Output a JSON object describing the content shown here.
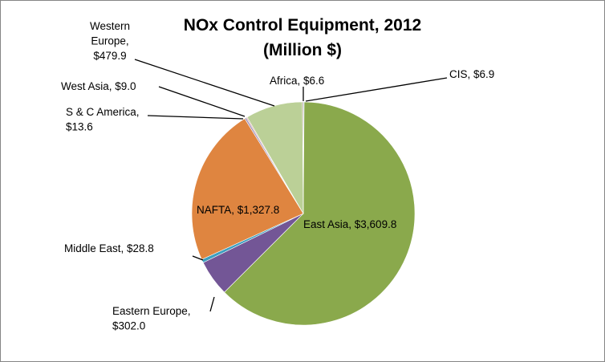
{
  "chart_data": {
    "type": "pie",
    "title": "NOx Control Equipment, 2012",
    "subtitle": "(Million $)",
    "unit": "Million $",
    "start": "top",
    "direction": "clockwise",
    "slices": [
      {
        "name": "CIS",
        "value": 6.9,
        "color": "#4bacc6",
        "label_lines": [
          "CIS, $6.9"
        ]
      },
      {
        "name": "East Asia",
        "value": 3609.8,
        "color": "#8aa94c",
        "label_lines": [
          "East Asia, $3,609.8"
        ]
      },
      {
        "name": "Eastern Europe",
        "value": 302.0,
        "color": "#735696",
        "label_lines": [
          "Eastern Europe,",
          "$302.0"
        ]
      },
      {
        "name": "Middle East",
        "value": 28.8,
        "color": "#3d9fbf",
        "label_lines": [
          "Middle East, $28.8"
        ]
      },
      {
        "name": "NAFTA",
        "value": 1327.8,
        "color": "#df8540",
        "label_lines": [
          "NAFTA, $1,327.8"
        ]
      },
      {
        "name": "S & C America",
        "value": 13.6,
        "color": "#9d8fb7",
        "label_lines": [
          "S & C America,",
          "$13.6"
        ]
      },
      {
        "name": "West Asia",
        "value": 9.0,
        "color": "#d49b9b",
        "label_lines": [
          "West Asia, $9.0"
        ]
      },
      {
        "name": "Western Europe",
        "value": 479.9,
        "color": "#bbd097",
        "label_lines": [
          "Western",
          "Europe,",
          "$479.9"
        ]
      },
      {
        "name": "Africa",
        "value": 6.6,
        "color": "#8c4a4a",
        "label_lines": [
          "Africa, $6.6"
        ]
      }
    ]
  }
}
